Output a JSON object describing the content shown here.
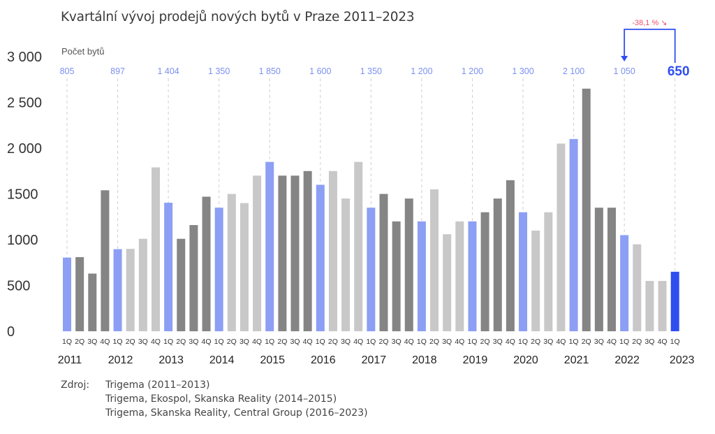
{
  "chart_data": {
    "type": "bar",
    "title": "Kvartální vývoj prodejů nových bytů v Praze 2011–2023",
    "ylabel": "Počet bytů",
    "ylim": [
      0,
      3000
    ],
    "yticks": [
      "0",
      "500",
      "1000",
      "1500",
      "2 000",
      "2 500",
      "3 000"
    ],
    "ytick_values": [
      0,
      500,
      1000,
      1500,
      2000,
      2500,
      3000
    ],
    "quarter_labels": [
      "1Q",
      "2Q",
      "3Q",
      "4Q"
    ],
    "years": [
      "2011",
      "2012",
      "2013",
      "2014",
      "2015",
      "2016",
      "2017",
      "2018",
      "2019",
      "2020",
      "2021",
      "2022",
      "2023"
    ],
    "values": [
      805,
      810,
      630,
      1540,
      897,
      900,
      1010,
      1790,
      1404,
      1010,
      1160,
      1470,
      1350,
      1500,
      1400,
      1700,
      1850,
      1700,
      1700,
      1750,
      1600,
      1750,
      1450,
      1850,
      1350,
      1500,
      1200,
      1450,
      1200,
      1550,
      1060,
      1200,
      1200,
      1300,
      1450,
      1650,
      1300,
      1100,
      1300,
      2050,
      2100,
      2650,
      1350,
      1350,
      1050,
      950,
      550,
      550,
      650
    ],
    "q1_labels": [
      "805",
      "897",
      "1 404",
      "1 350",
      "1 850",
      "1 600",
      "1 350",
      "1 200",
      "1 200",
      "1 300",
      "2 100",
      "1 050",
      "650"
    ],
    "annotation": "-38,1 % ↘",
    "colors": {
      "q1": "#8c9ff4",
      "last": "#2f4ef0",
      "light": "#c8c8c8",
      "dark": "#858585",
      "q1_label": "#7b8ff0",
      "annotation": "#f0506e",
      "arrow": "#2f4ef0",
      "axis_text": "#333333"
    }
  },
  "source": {
    "label": "Zdroj:",
    "lines": [
      "Trigema (2011–2013)",
      "Trigema, Ekospol, Skanska Reality (2014–2015)",
      "Trigema, Skanska Reality, Central Group (2016–2023)"
    ]
  }
}
